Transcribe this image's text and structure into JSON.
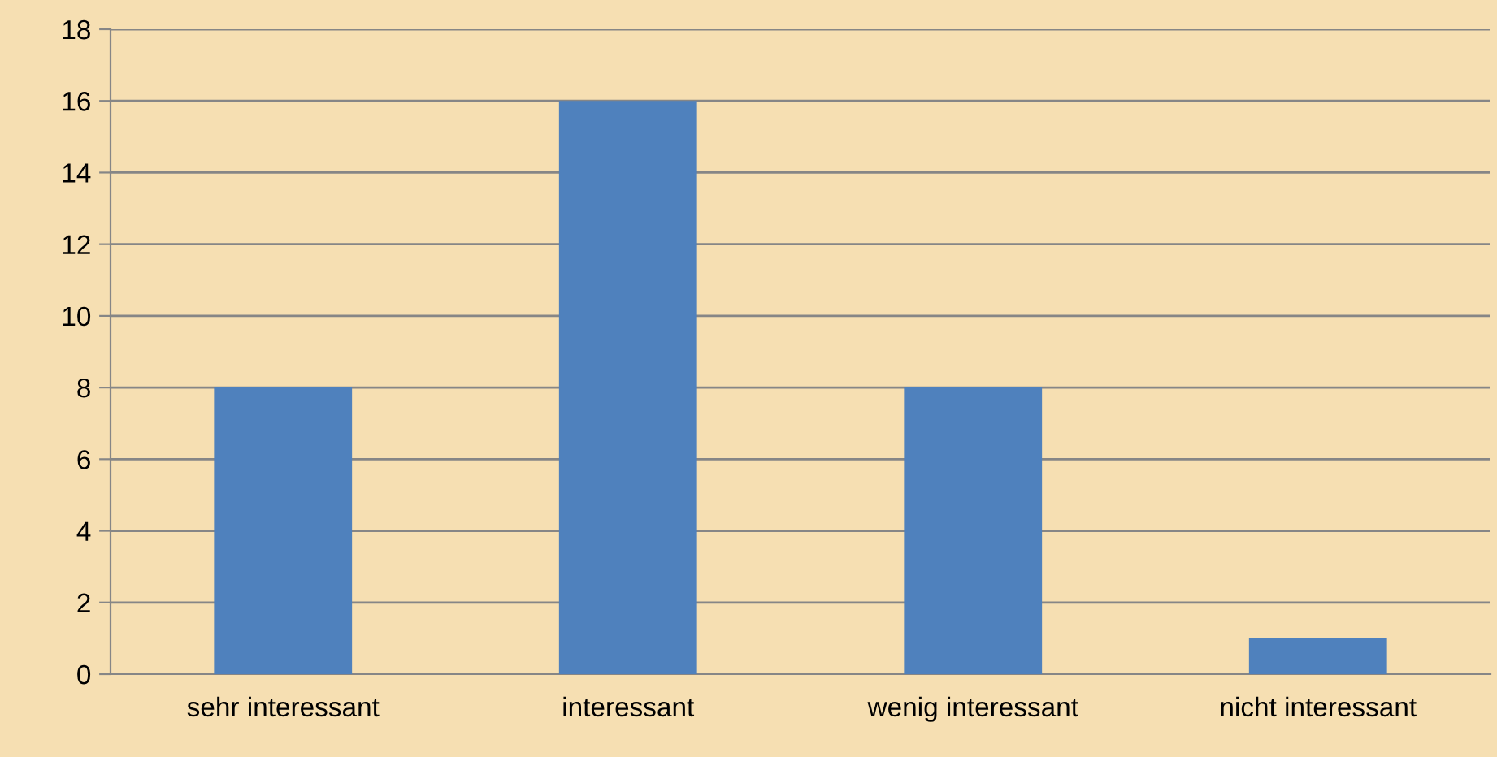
{
  "chart_data": {
    "type": "bar",
    "categories": [
      "sehr interessant",
      "interessant",
      "wenig interessant",
      "nicht interessant"
    ],
    "values": [
      8,
      16,
      8,
      1
    ],
    "color": "#4f81bd",
    "ylim": [
      0,
      18
    ],
    "yticks": [
      0,
      2,
      4,
      6,
      8,
      10,
      12,
      14,
      16,
      18
    ],
    "grid": "y",
    "legend": false
  }
}
